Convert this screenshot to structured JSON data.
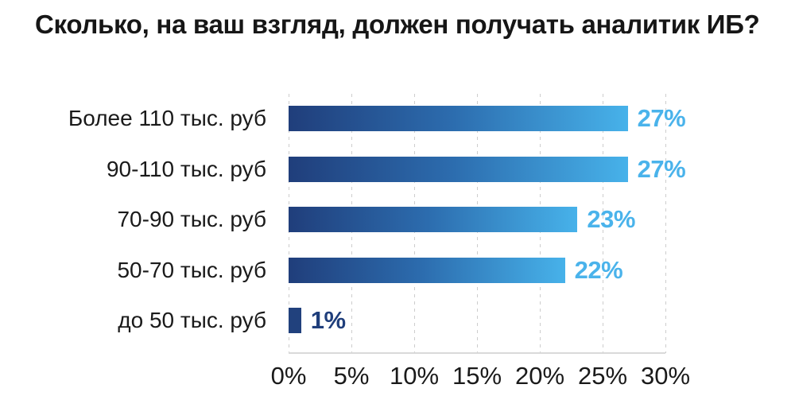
{
  "chart_data": {
    "type": "bar",
    "orientation": "horizontal",
    "title": "Сколько, на ваш взгляд, должен получать аналитик ИБ?",
    "categories": [
      "Более 110 тыс. руб",
      "90-110 тыс. руб",
      "70-90 тыс. руб",
      "50-70 тыс. руб",
      "до 50 тыс. руб"
    ],
    "values": [
      27,
      27,
      23,
      22,
      1
    ],
    "value_labels": [
      "27%",
      "27%",
      "23%",
      "22%",
      "1%"
    ],
    "value_label_styles": [
      "light",
      "light",
      "light",
      "light",
      "dark"
    ],
    "bar_fill_styles": [
      "gradient",
      "gradient",
      "gradient",
      "gradient",
      "solid"
    ],
    "xlabel": "",
    "ylabel": "",
    "xlim": [
      0,
      30
    ],
    "x_ticks": [
      0,
      5,
      10,
      15,
      20,
      25,
      30
    ],
    "x_tick_labels": [
      "0%",
      "5%",
      "10%",
      "15%",
      "20%",
      "25%",
      "30%"
    ],
    "grid": "vertical-dashed",
    "legend": "none",
    "colors": {
      "bar_gradient_start": "#203E7B",
      "bar_gradient_mid": "#2C6CAE",
      "bar_gradient_end": "#47B2EA",
      "small_bar_solid": "#21417D",
      "value_label_light": "#4AB3EB",
      "value_label_dark": "#1F3E7B",
      "gridline": "#CDCDCD",
      "baseline": "#D9D9D9",
      "text": "#1A1A1A",
      "title_text": "#161616",
      "background": "#FFFFFF"
    }
  }
}
